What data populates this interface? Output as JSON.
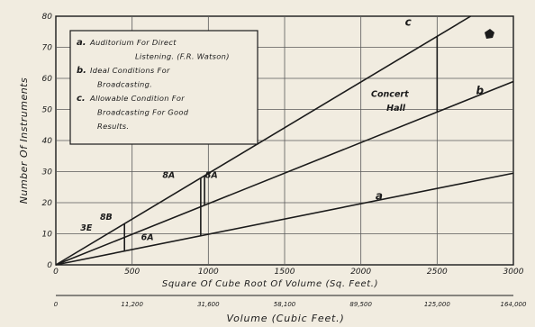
{
  "chart_data": {
    "type": "line",
    "ylabel": "Number Of Instruments",
    "xlabel": "Square Of Cube Root Of Volume (Sq. Feet.)",
    "x2label": "Volume (Cubic Feet.)",
    "xlim": [
      0,
      3000
    ],
    "ylim": [
      0,
      80
    ],
    "x_ticks": [
      {
        "value": 0,
        "label": "0"
      },
      {
        "value": 500,
        "label": "500"
      },
      {
        "value": 1000,
        "label": "1000"
      },
      {
        "value": 1500,
        "label": "1500"
      },
      {
        "value": 2000,
        "label": "2000"
      },
      {
        "value": 2500,
        "label": "2500"
      },
      {
        "value": 3000,
        "label": "3000"
      }
    ],
    "y_ticks": [
      {
        "value": 0,
        "label": "0"
      },
      {
        "value": 10,
        "label": "10"
      },
      {
        "value": 20,
        "label": "20"
      },
      {
        "value": 30,
        "label": "30"
      },
      {
        "value": 40,
        "label": "40"
      },
      {
        "value": 50,
        "label": "50"
      },
      {
        "value": 60,
        "label": "60"
      },
      {
        "value": 70,
        "label": "70"
      },
      {
        "value": 80,
        "label": "80"
      }
    ],
    "volume_ticks": [
      {
        "at": 0,
        "label": "0"
      },
      {
        "at": 500,
        "label": "11,200"
      },
      {
        "at": 1000,
        "label": "31,600"
      },
      {
        "at": 1500,
        "label": "58,100"
      },
      {
        "at": 2000,
        "label": "89,500"
      },
      {
        "at": 2500,
        "label": "125,000"
      },
      {
        "at": 3000,
        "label": "164,000"
      }
    ],
    "grid": true,
    "series": [
      {
        "name": "a",
        "x": [
          0,
          3000
        ],
        "y": [
          0,
          29.5
        ]
      },
      {
        "name": "b",
        "x": [
          0,
          3000
        ],
        "y": [
          0,
          59
        ]
      },
      {
        "name": "c",
        "x": [
          0,
          2720
        ],
        "y": [
          0,
          80
        ]
      }
    ],
    "annotations": [
      {
        "text": "c",
        "x": 2310,
        "y": 77
      },
      {
        "text": "b",
        "x": 2780,
        "y": 55
      },
      {
        "text": "a",
        "x": 2120,
        "y": 21
      },
      {
        "text": "Concert",
        "x": 2190,
        "y": 54
      },
      {
        "text": "Hall",
        "x": 2230,
        "y": 49.5
      },
      {
        "text": "8A",
        "x": 740,
        "y": 28
      },
      {
        "text": "8A",
        "x": 1020,
        "y": 28
      },
      {
        "text": "8B",
        "x": 330,
        "y": 14.5
      },
      {
        "text": "3E",
        "x": 200,
        "y": 11
      },
      {
        "text": "6A",
        "x": 600,
        "y": 8
      }
    ],
    "legend": [
      {
        "key": "a.",
        "text": "Auditorium For Direct"
      },
      {
        "key": "",
        "text": "Listening. (F.R. Watson)"
      },
      {
        "key": "b.",
        "text": "Ideal Conditions For"
      },
      {
        "key": "",
        "text": "Broadcasting."
      },
      {
        "key": "c.",
        "text": "Allowable Condition For"
      },
      {
        "key": "",
        "text": "Broadcasting For Good"
      },
      {
        "key": "",
        "text": "Results."
      }
    ],
    "legend_position": "top-left"
  },
  "colors": {
    "background": "#f1ece0",
    "ink": "#1b1b1b",
    "grid": "#5a5a5a"
  }
}
